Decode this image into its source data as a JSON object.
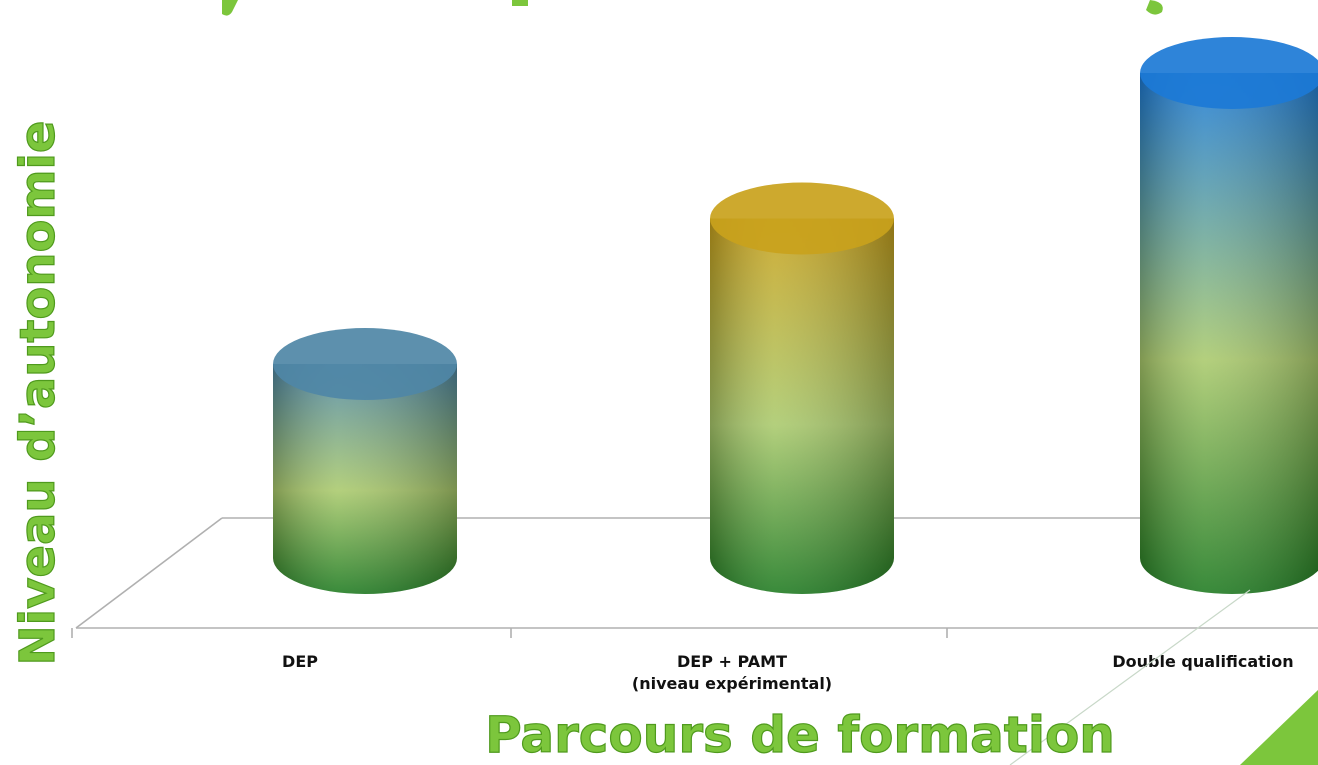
{
  "chart_data": {
    "type": "bar",
    "style": "3d-cylinder",
    "categories": [
      [
        "DEP"
      ],
      [
        "DEP  +  PAMT",
        "(niveau expérimental)"
      ],
      [
        "Double qualification"
      ]
    ],
    "values": [
      2,
      3.5,
      5
    ],
    "ylim": [
      0,
      5.2
    ],
    "xlabel": "Parcours de formation",
    "ylabel": "Niveau d’autonomie",
    "grid": false,
    "colors": {
      "label": "#7cc63c",
      "label_stroke": "#4f9a1d",
      "bar_bottom": "#1d7a1f",
      "bar_mid": "#a9c96b",
      "bar_tops": [
        "#4f87a6",
        "#c9a21c",
        "#1c7ad6"
      ],
      "axis": "#b0b0b0"
    }
  }
}
